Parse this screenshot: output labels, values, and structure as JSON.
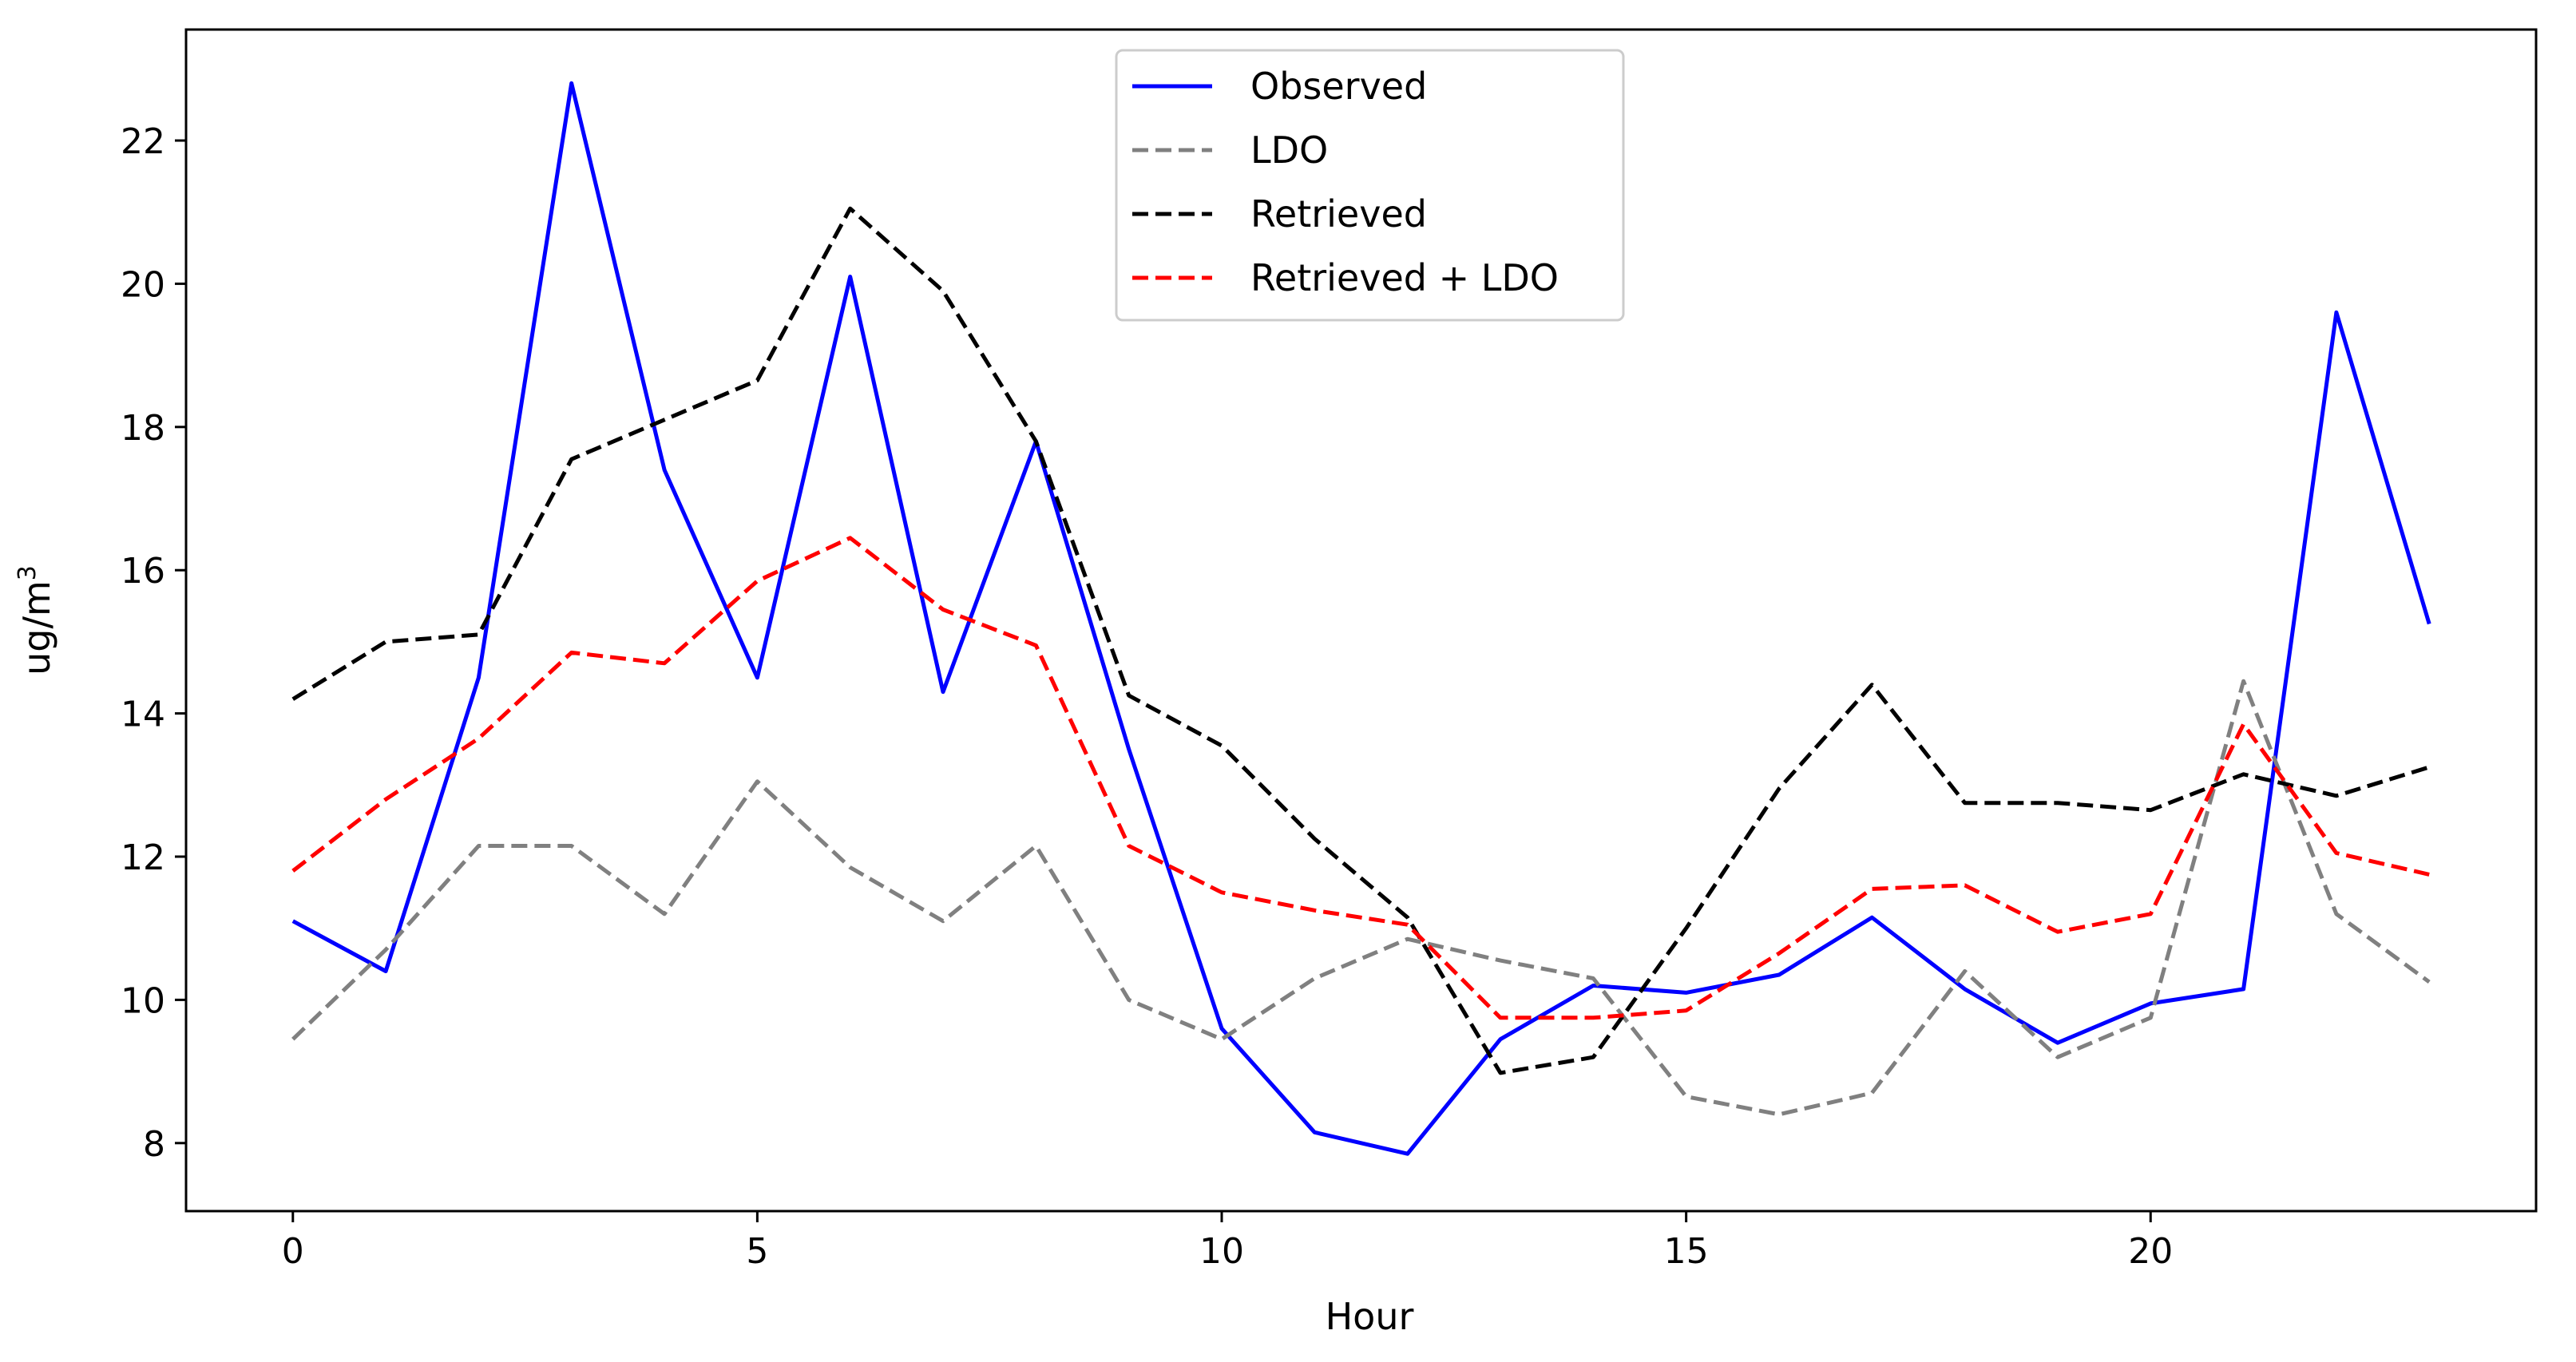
{
  "chart_data": {
    "type": "line",
    "title": "",
    "xlabel": "Hour",
    "ylabel_main": "ug/m",
    "ylabel_sup": "3",
    "xlim": [
      -1.15,
      24.15
    ],
    "ylim": [
      7.05,
      23.55
    ],
    "xticks": [
      0,
      5,
      10,
      15,
      20
    ],
    "yticks": [
      8,
      10,
      12,
      14,
      16,
      18,
      20,
      22
    ],
    "legend_position": "top-center",
    "x": [
      0,
      1,
      2,
      3,
      4,
      5,
      6,
      7,
      8,
      9,
      10,
      11,
      12,
      13,
      14,
      15,
      16,
      17,
      18,
      19,
      20,
      21,
      22,
      23
    ],
    "series": [
      {
        "name": "Observed",
        "color": "#0000ff",
        "dashed": false,
        "values": [
          11.1,
          10.4,
          14.5,
          22.8,
          17.4,
          14.5,
          20.1,
          14.3,
          17.8,
          13.5,
          9.6,
          8.15,
          7.85,
          9.45,
          10.2,
          10.1,
          10.35,
          11.15,
          10.15,
          9.4,
          9.95,
          10.15,
          19.6,
          15.25
        ]
      },
      {
        "name": "LDO",
        "color": "#808080",
        "dashed": true,
        "values": [
          9.45,
          10.7,
          12.15,
          12.15,
          11.2,
          13.05,
          11.85,
          11.1,
          12.15,
          10.0,
          9.45,
          10.3,
          10.85,
          10.55,
          10.3,
          8.65,
          8.4,
          8.7,
          10.4,
          9.2,
          9.75,
          14.45,
          11.2,
          10.25
        ]
      },
      {
        "name": "Retrieved",
        "color": "#000000",
        "dashed": true,
        "values": [
          14.2,
          15.0,
          15.1,
          17.55,
          18.1,
          18.65,
          21.05,
          19.9,
          17.8,
          14.25,
          13.55,
          12.25,
          11.15,
          8.98,
          9.2,
          11.0,
          12.95,
          14.4,
          12.75,
          12.75,
          12.65,
          13.15,
          12.85,
          13.25
        ]
      },
      {
        "name": "Retrieved + LDO",
        "color": "#ff0000",
        "dashed": true,
        "values": [
          11.8,
          12.8,
          13.65,
          14.85,
          14.7,
          15.85,
          16.45,
          15.45,
          14.95,
          12.15,
          11.5,
          11.25,
          11.05,
          9.75,
          9.75,
          9.85,
          10.65,
          11.55,
          11.6,
          10.95,
          11.2,
          13.85,
          12.05,
          11.75
        ]
      }
    ]
  }
}
